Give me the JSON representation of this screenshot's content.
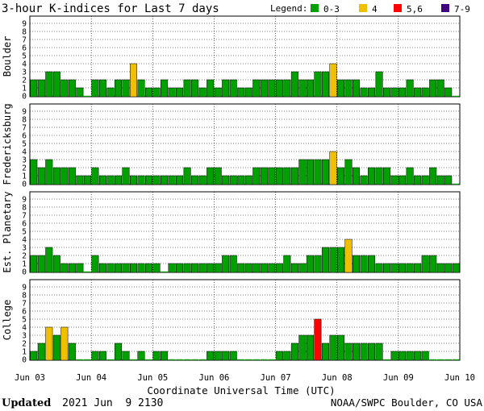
{
  "header": {
    "title": "3-hour K-indices for Last 7 days",
    "legend_label": "Legend:"
  },
  "legend": [
    {
      "label": "0-3",
      "color": "#00a000"
    },
    {
      "label": "4",
      "color": "#f0c000"
    },
    {
      "label": "5,6",
      "color": "#ff0000"
    },
    {
      "label": "7-9",
      "color": "#400080"
    }
  ],
  "footer": {
    "updated_label": "Updated",
    "updated_time": "2021 Jun  9 2130",
    "source": "NOAA/SWPC Boulder, CO USA"
  },
  "chart_data": {
    "type": "bar",
    "xlabel": "Coordinate Universal Time (UTC)",
    "x_tick_labels": [
      "Jun 03",
      "Jun 04",
      "Jun 05",
      "Jun 06",
      "Jun 07",
      "Jun 08",
      "Jun 09",
      "Jun 10"
    ],
    "ylim": [
      0,
      9
    ],
    "y_tick_labels": [
      "0",
      "1",
      "2",
      "3",
      "4",
      "5",
      "6",
      "7",
      "8",
      "9"
    ],
    "grid": true,
    "legend_position": "top-right",
    "panels": [
      {
        "name": "Boulder",
        "values": [
          2,
          2,
          3,
          3,
          2,
          2,
          1,
          0,
          2,
          2,
          1,
          2,
          2,
          4,
          2,
          1,
          1,
          2,
          1,
          1,
          2,
          2,
          1,
          2,
          1,
          2,
          2,
          1,
          1,
          2,
          2,
          2,
          2,
          2,
          3,
          2,
          2,
          3,
          3,
          4,
          2,
          2,
          2,
          1,
          1,
          3,
          1,
          1,
          1,
          2,
          1,
          1,
          2,
          2,
          1,
          0
        ]
      },
      {
        "name": "Fredericksburg",
        "values": [
          3,
          2,
          3,
          2,
          2,
          2,
          1,
          1,
          2,
          1,
          1,
          1,
          2,
          1,
          1,
          1,
          1,
          1,
          1,
          1,
          2,
          1,
          1,
          2,
          2,
          1,
          1,
          1,
          1,
          2,
          2,
          2,
          2,
          2,
          2,
          3,
          3,
          3,
          3,
          4,
          2,
          3,
          2,
          1,
          2,
          2,
          2,
          1,
          1,
          2,
          1,
          1,
          2,
          1,
          1,
          0
        ]
      },
      {
        "name": "Est. Planetary",
        "values": [
          2,
          2,
          3,
          2,
          1,
          1,
          1,
          0,
          2,
          1,
          1,
          1,
          1,
          1,
          1,
          1,
          1,
          0,
          1,
          1,
          1,
          1,
          1,
          1,
          1,
          2,
          2,
          1,
          1,
          1,
          1,
          1,
          1,
          2,
          1,
          1,
          2,
          2,
          3,
          3,
          3,
          4,
          2,
          2,
          2,
          1,
          1,
          1,
          1,
          1,
          1,
          2,
          2,
          1,
          1,
          1
        ]
      },
      {
        "name": "College",
        "values": [
          1,
          2,
          4,
          3,
          4,
          2,
          0,
          0,
          1,
          1,
          0,
          2,
          1,
          0,
          1,
          0,
          1,
          1,
          0,
          0,
          0,
          0,
          0,
          1,
          1,
          1,
          1,
          0,
          0,
          0,
          0,
          0,
          1,
          1,
          2,
          3,
          3,
          5,
          2,
          3,
          3,
          2,
          2,
          2,
          2,
          2,
          0,
          1,
          1,
          1,
          1,
          1,
          0,
          0,
          0,
          0
        ]
      }
    ]
  }
}
